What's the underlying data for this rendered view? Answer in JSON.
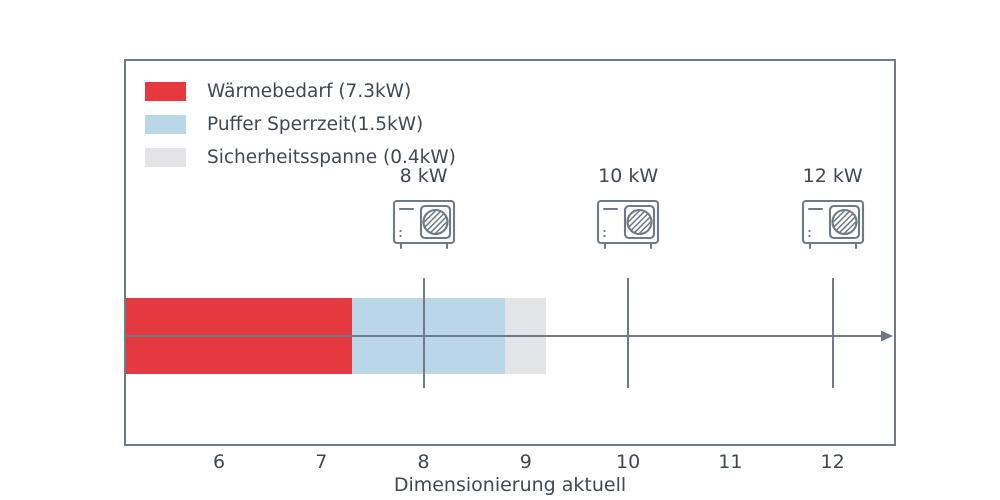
{
  "chart_data": {
    "type": "bar",
    "orientation": "horizontal",
    "title": "",
    "xlabel": "Dimensionierung aktuell",
    "ylabel": "",
    "xlim": [
      5.09,
      12.6
    ],
    "xticks": [
      6,
      7,
      8,
      9,
      10,
      11,
      12
    ],
    "grid": false,
    "legend_position": "upper left",
    "segments": [
      {
        "name": "Wärmebedarf (7.3kW)",
        "start": 5.09,
        "end": 7.3,
        "value_kw": 7.3,
        "color": "#e6393f"
      },
      {
        "name": "Puffer Sperrzeit(1.5kW)",
        "start": 7.3,
        "end": 8.8,
        "value_kw": 1.5,
        "color": "#b9d7e8"
      },
      {
        "name": "Sicherheitsspanne (0.4kW)",
        "start": 8.8,
        "end": 9.2,
        "value_kw": 0.4,
        "color": "#e2e4e7"
      }
    ],
    "markers": [
      {
        "x": 8,
        "label": "8 kW"
      },
      {
        "x": 10,
        "label": "10 kW"
      },
      {
        "x": 12,
        "label": "12 kW"
      }
    ]
  },
  "colors": {
    "axis": "#6e7a87",
    "text": "#3d4956"
  }
}
